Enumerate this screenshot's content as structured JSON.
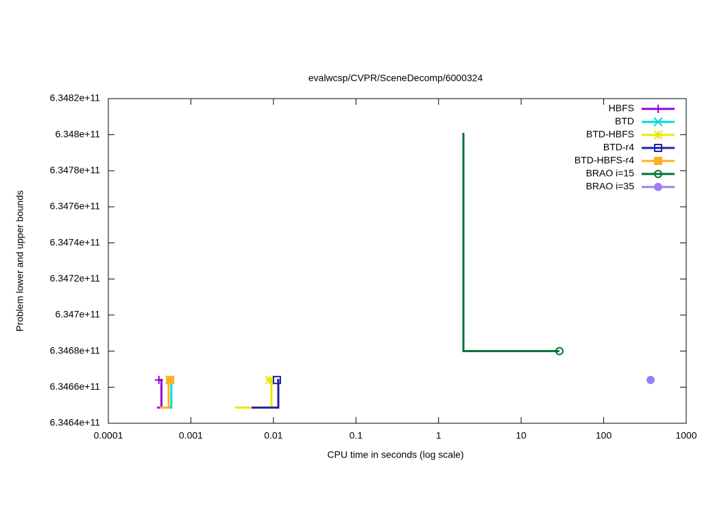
{
  "chart_data": {
    "type": "line",
    "title": "evalwcsp/CVPR/SceneDecomp/6000324",
    "x_label": "CPU time in seconds (log scale)",
    "y_label": "Problem lower and upper bounds",
    "xscale": "log",
    "xlim": [
      0.0001,
      1000
    ],
    "xticks": [
      0.0001,
      0.001,
      0.01,
      0.1,
      1,
      10,
      100,
      1000
    ],
    "ylim": [
      634640000000,
      634820000000
    ],
    "yticks": [
      {
        "value": 634640000000,
        "label": "6.3464e+11"
      },
      {
        "value": 634660000000,
        "label": "6.3466e+11"
      },
      {
        "value": 634680000000,
        "label": "6.3468e+11"
      },
      {
        "value": 634700000000,
        "label": "6.347e+11"
      },
      {
        "value": 634720000000,
        "label": "6.3472e+11"
      },
      {
        "value": 634740000000,
        "label": "6.3474e+11"
      },
      {
        "value": 634760000000,
        "label": "6.3476e+11"
      },
      {
        "value": 634780000000,
        "label": "6.3478e+11"
      },
      {
        "value": 634800000000,
        "label": "6.348e+11"
      },
      {
        "value": 634820000000,
        "label": "6.3482e+11"
      }
    ],
    "legend": "top-right",
    "series": [
      {
        "name": "HBFS",
        "color": "#9400d3",
        "marker": "plus",
        "x": [
          0.00039,
          0.00044,
          0.00044,
          0.00041
        ],
        "values": [
          634648700000,
          634648700000,
          634664000000,
          634664000000
        ]
      },
      {
        "name": "BTD",
        "color": "#00d8e0",
        "marker": "cross",
        "x": [
          0.0005,
          0.00058,
          0.00058,
          0.00056
        ],
        "values": [
          634648700000,
          634648700000,
          634664000000,
          634664000000
        ]
      },
      {
        "name": "BTD-HBFS",
        "color": "#e8e800",
        "marker": "star",
        "x": [
          0.00344,
          0.00946,
          0.00946,
          0.00894
        ],
        "values": [
          634648700000,
          634648700000,
          634664000000,
          634664000000
        ]
      },
      {
        "name": "BTD-r4",
        "color": "#2020a8",
        "marker": "square-open",
        "x": [
          0.00544,
          0.01146,
          0.01146,
          0.01103
        ],
        "values": [
          634648700000,
          634648700000,
          634664000000,
          634664000000
        ]
      },
      {
        "name": "BTD-HBFS-r4",
        "color": "#ffb020",
        "marker": "square",
        "x": [
          0.00042,
          0.000538,
          0.000538,
          0.00056
        ],
        "values": [
          634648700000,
          634648700000,
          634664000000,
          634664000000
        ]
      },
      {
        "name": "BRAO i=15",
        "color": "#007038",
        "marker": "circle-open",
        "x": [
          2.0,
          2.0,
          29.1
        ],
        "values": [
          634801000000,
          634680000000,
          634680000000
        ]
      },
      {
        "name": "BRAO i=35",
        "color": "#9b80f0",
        "marker": "circle",
        "x": [
          370
        ],
        "values": [
          634664000000
        ]
      }
    ]
  }
}
